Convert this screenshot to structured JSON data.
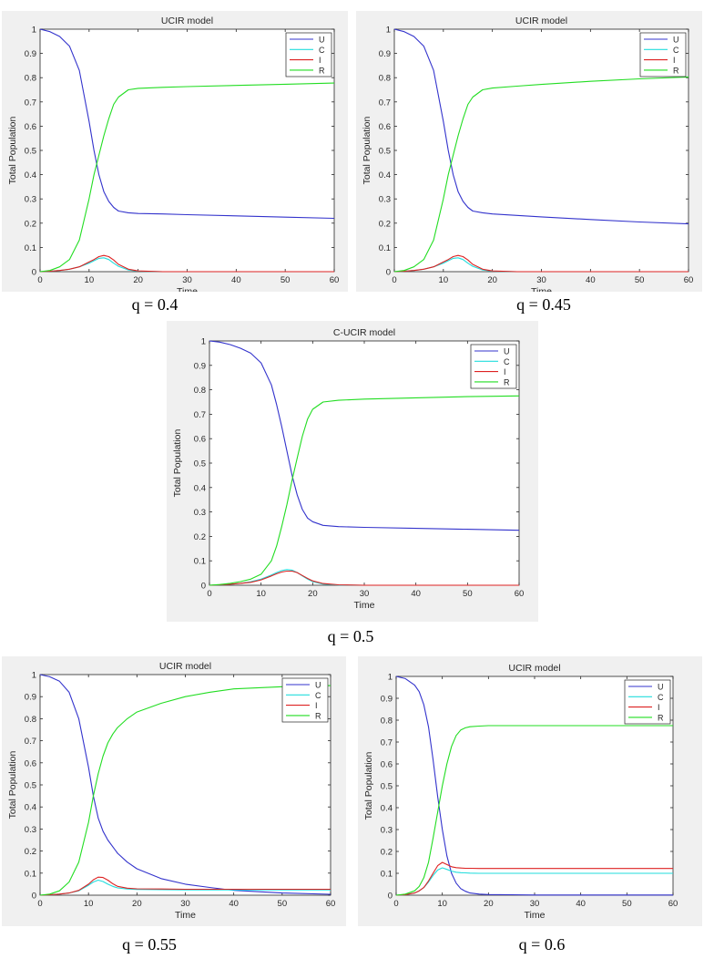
{
  "captions": [
    "q = 0.4",
    "q = 0.45",
    "q = 0.5",
    "q = 0.55",
    "q = 0.6"
  ],
  "series_colors": {
    "U": "#3333cc",
    "C": "#22dddd",
    "I": "#dd2222",
    "R": "#22dd22"
  },
  "chart_data": [
    {
      "type": "line",
      "title": "UCIR model",
      "xlabel": "Time",
      "ylabel": "Total Population",
      "xlim": [
        0,
        60
      ],
      "ylim": [
        0,
        1
      ],
      "xticks": [
        0,
        10,
        20,
        30,
        40,
        50,
        60
      ],
      "yticks": [
        0,
        0.1,
        0.2,
        0.3,
        0.4,
        0.5,
        0.6,
        0.7,
        0.8,
        0.9,
        1
      ],
      "legend": "top-right",
      "x": [
        0,
        2,
        4,
        6,
        8,
        10,
        11,
        12,
        13,
        14,
        15,
        16,
        18,
        20,
        25,
        30,
        40,
        50,
        60
      ],
      "series": [
        {
          "name": "U",
          "values": [
            1.0,
            0.99,
            0.97,
            0.93,
            0.83,
            0.62,
            0.5,
            0.4,
            0.33,
            0.29,
            0.265,
            0.25,
            0.243,
            0.24,
            0.238,
            0.235,
            0.23,
            0.225,
            0.22
          ]
        },
        {
          "name": "C",
          "values": [
            0,
            0.002,
            0.005,
            0.01,
            0.02,
            0.035,
            0.045,
            0.055,
            0.057,
            0.05,
            0.035,
            0.022,
            0.007,
            0.002,
            0,
            0,
            0,
            0,
            0
          ]
        },
        {
          "name": "I",
          "values": [
            0,
            0.002,
            0.005,
            0.01,
            0.02,
            0.04,
            0.05,
            0.062,
            0.067,
            0.062,
            0.048,
            0.03,
            0.01,
            0.003,
            0,
            0,
            0,
            0,
            0
          ]
        },
        {
          "name": "R",
          "values": [
            0,
            0.005,
            0.02,
            0.05,
            0.13,
            0.3,
            0.4,
            0.48,
            0.56,
            0.63,
            0.69,
            0.72,
            0.75,
            0.756,
            0.76,
            0.763,
            0.768,
            0.773,
            0.778
          ]
        }
      ]
    },
    {
      "type": "line",
      "title": "UCIR model",
      "xlabel": "Time",
      "ylabel": "Total Population",
      "xlim": [
        0,
        60
      ],
      "ylim": [
        0,
        1
      ],
      "xticks": [
        0,
        10,
        20,
        30,
        40,
        50,
        60
      ],
      "yticks": [
        0,
        0.1,
        0.2,
        0.3,
        0.4,
        0.5,
        0.6,
        0.7,
        0.8,
        0.9,
        1
      ],
      "legend": "top-right",
      "x": [
        0,
        2,
        4,
        6,
        8,
        10,
        11,
        12,
        13,
        14,
        15,
        16,
        18,
        20,
        25,
        30,
        40,
        50,
        60
      ],
      "series": [
        {
          "name": "U",
          "values": [
            1.0,
            0.99,
            0.97,
            0.93,
            0.83,
            0.62,
            0.5,
            0.4,
            0.33,
            0.29,
            0.265,
            0.25,
            0.243,
            0.238,
            0.232,
            0.226,
            0.215,
            0.205,
            0.197
          ]
        },
        {
          "name": "C",
          "values": [
            0,
            0.002,
            0.005,
            0.01,
            0.02,
            0.035,
            0.045,
            0.055,
            0.057,
            0.05,
            0.035,
            0.022,
            0.007,
            0.002,
            0,
            0,
            0,
            0,
            0
          ]
        },
        {
          "name": "I",
          "values": [
            0,
            0.002,
            0.005,
            0.01,
            0.02,
            0.04,
            0.05,
            0.062,
            0.067,
            0.062,
            0.048,
            0.03,
            0.01,
            0.003,
            0,
            0,
            0,
            0,
            0
          ]
        },
        {
          "name": "R",
          "values": [
            0,
            0.005,
            0.02,
            0.05,
            0.13,
            0.3,
            0.4,
            0.48,
            0.56,
            0.63,
            0.69,
            0.72,
            0.75,
            0.757,
            0.765,
            0.772,
            0.785,
            0.795,
            0.803
          ]
        }
      ]
    },
    {
      "type": "line",
      "title": "C-UCIR model",
      "xlabel": "Time",
      "ylabel": "Total Population",
      "xlim": [
        0,
        60
      ],
      "ylim": [
        0,
        1
      ],
      "xticks": [
        0,
        10,
        20,
        30,
        40,
        50,
        60
      ],
      "yticks": [
        0,
        0.1,
        0.2,
        0.3,
        0.4,
        0.5,
        0.6,
        0.7,
        0.8,
        0.9,
        1
      ],
      "legend": "top-right",
      "x": [
        0,
        2,
        4,
        6,
        8,
        10,
        12,
        13,
        14,
        15,
        16,
        17,
        18,
        19,
        20,
        22,
        25,
        30,
        40,
        50,
        60
      ],
      "series": [
        {
          "name": "U",
          "values": [
            1.0,
            0.995,
            0.985,
            0.97,
            0.95,
            0.91,
            0.82,
            0.74,
            0.65,
            0.55,
            0.45,
            0.37,
            0.31,
            0.275,
            0.26,
            0.245,
            0.24,
            0.237,
            0.233,
            0.229,
            0.225
          ]
        },
        {
          "name": "C",
          "values": [
            0,
            0.002,
            0.004,
            0.008,
            0.014,
            0.025,
            0.042,
            0.052,
            0.06,
            0.064,
            0.062,
            0.052,
            0.038,
            0.025,
            0.015,
            0.005,
            0.001,
            0,
            0,
            0,
            0
          ]
        },
        {
          "name": "I",
          "values": [
            0,
            0.002,
            0.004,
            0.008,
            0.012,
            0.022,
            0.038,
            0.047,
            0.054,
            0.058,
            0.058,
            0.052,
            0.04,
            0.028,
            0.018,
            0.007,
            0.002,
            0,
            0,
            0,
            0
          ]
        },
        {
          "name": "R",
          "values": [
            0,
            0.003,
            0.008,
            0.015,
            0.025,
            0.045,
            0.1,
            0.16,
            0.24,
            0.33,
            0.43,
            0.52,
            0.61,
            0.68,
            0.72,
            0.75,
            0.757,
            0.762,
            0.767,
            0.772,
            0.775
          ]
        }
      ]
    },
    {
      "type": "line",
      "title": "UCIR model",
      "xlabel": "Time",
      "ylabel": "Total Population",
      "xlim": [
        0,
        60
      ],
      "ylim": [
        0,
        1
      ],
      "xticks": [
        0,
        10,
        20,
        30,
        40,
        50,
        60
      ],
      "yticks": [
        0,
        0.1,
        0.2,
        0.3,
        0.4,
        0.5,
        0.6,
        0.7,
        0.8,
        0.9,
        1
      ],
      "legend": "top-right",
      "x": [
        0,
        2,
        4,
        6,
        8,
        10,
        11,
        12,
        13,
        14,
        15,
        16,
        18,
        20,
        25,
        30,
        35,
        40,
        50,
        60
      ],
      "series": [
        {
          "name": "U",
          "values": [
            1.0,
            0.99,
            0.97,
            0.92,
            0.8,
            0.58,
            0.45,
            0.35,
            0.29,
            0.25,
            0.22,
            0.19,
            0.15,
            0.12,
            0.075,
            0.05,
            0.035,
            0.022,
            0.01,
            0.004
          ]
        },
        {
          "name": "C",
          "values": [
            0,
            0.002,
            0.005,
            0.01,
            0.02,
            0.045,
            0.06,
            0.068,
            0.062,
            0.05,
            0.04,
            0.033,
            0.028,
            0.026,
            0.025,
            0.024,
            0.024,
            0.024,
            0.024,
            0.024
          ]
        },
        {
          "name": "I",
          "values": [
            0,
            0.002,
            0.005,
            0.01,
            0.022,
            0.05,
            0.07,
            0.082,
            0.08,
            0.068,
            0.052,
            0.04,
            0.032,
            0.029,
            0.028,
            0.027,
            0.027,
            0.027,
            0.027,
            0.027
          ]
        },
        {
          "name": "R",
          "values": [
            0,
            0.005,
            0.02,
            0.06,
            0.15,
            0.33,
            0.45,
            0.55,
            0.63,
            0.69,
            0.73,
            0.76,
            0.8,
            0.83,
            0.87,
            0.9,
            0.92,
            0.935,
            0.945,
            0.95
          ]
        }
      ]
    },
    {
      "type": "line",
      "title": "UCIR model",
      "xlabel": "Time",
      "ylabel": "Total Population",
      "xlim": [
        0,
        60
      ],
      "ylim": [
        0,
        1
      ],
      "xticks": [
        0,
        10,
        20,
        30,
        40,
        50,
        60
      ],
      "yticks": [
        0,
        0.1,
        0.2,
        0.3,
        0.4,
        0.5,
        0.6,
        0.7,
        0.8,
        0.9,
        1
      ],
      "legend": "top-right",
      "x": [
        0,
        2,
        4,
        5,
        6,
        7,
        8,
        9,
        10,
        11,
        12,
        13,
        14,
        15,
        16,
        18,
        20,
        25,
        30,
        40,
        50,
        60
      ],
      "series": [
        {
          "name": "U",
          "values": [
            1.0,
            0.99,
            0.96,
            0.93,
            0.87,
            0.77,
            0.62,
            0.45,
            0.3,
            0.18,
            0.1,
            0.055,
            0.03,
            0.018,
            0.01,
            0.005,
            0.003,
            0.002,
            0.001,
            0.001,
            0.001,
            0.001
          ]
        },
        {
          "name": "C",
          "values": [
            0,
            0.002,
            0.01,
            0.02,
            0.035,
            0.06,
            0.09,
            0.115,
            0.125,
            0.118,
            0.11,
            0.105,
            0.103,
            0.102,
            0.101,
            0.1,
            0.1,
            0.1,
            0.1,
            0.1,
            0.1,
            0.1
          ]
        },
        {
          "name": "I",
          "values": [
            0,
            0.002,
            0.01,
            0.02,
            0.035,
            0.065,
            0.1,
            0.135,
            0.15,
            0.14,
            0.13,
            0.126,
            0.124,
            0.123,
            0.123,
            0.122,
            0.122,
            0.122,
            0.122,
            0.122,
            0.122,
            0.122
          ]
        },
        {
          "name": "R",
          "values": [
            0,
            0.005,
            0.02,
            0.04,
            0.08,
            0.15,
            0.26,
            0.38,
            0.5,
            0.6,
            0.68,
            0.73,
            0.755,
            0.765,
            0.77,
            0.773,
            0.775,
            0.775,
            0.775,
            0.775,
            0.775,
            0.775
          ]
        }
      ]
    }
  ]
}
